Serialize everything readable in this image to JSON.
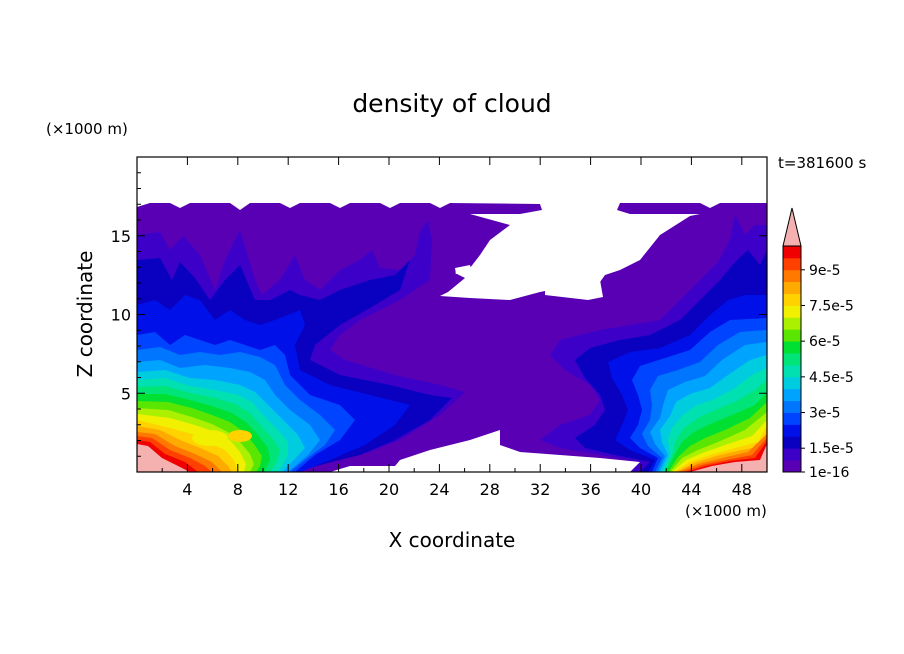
{
  "chart_data": {
    "type": "heatmap",
    "title": "density of cloud",
    "time_label": "t=381600 s",
    "xlabel": "X coordinate",
    "ylabel": "Z coordinate",
    "x_unit": "(×1000 m)",
    "y_unit": "(×1000 m)",
    "xlim": [
      0,
      50
    ],
    "ylim": [
      0,
      20
    ],
    "x_ticks": [
      4,
      8,
      12,
      16,
      20,
      24,
      28,
      32,
      36,
      40,
      44,
      48
    ],
    "y_ticks": [
      5,
      10,
      15
    ],
    "colorbar": {
      "levels": [
        1e-16,
        1e-05,
        1.5e-05,
        2e-05,
        2.5e-05,
        3e-05,
        3.5e-05,
        4e-05,
        4.5e-05,
        5e-05,
        5.5e-05,
        6e-05,
        6.5e-05,
        7e-05,
        7.5e-05,
        8e-05,
        8.5e-05,
        9e-05,
        9.5e-05,
        0.0001
      ],
      "labels": [
        {
          "value": 1e-16,
          "text": "1e-16"
        },
        {
          "value": 1.5e-05,
          "text": "1.5e-5"
        },
        {
          "value": 3e-05,
          "text": "3e-5"
        },
        {
          "value": 4.5e-05,
          "text": "4.5e-5"
        },
        {
          "value": 6e-05,
          "text": "6e-5"
        },
        {
          "value": 7.5e-05,
          "text": "7.5e-5"
        },
        {
          "value": 9e-05,
          "text": "9e-5"
        }
      ],
      "colors": [
        "#5a00b4",
        "#3c00c8",
        "#0a00c0",
        "#0010e8",
        "#0044ff",
        "#0076ff",
        "#00a4ff",
        "#00cce0",
        "#00e0b0",
        "#00e478",
        "#00e032",
        "#5ae600",
        "#aaf000",
        "#f0f000",
        "#ffd200",
        "#ffaa00",
        "#ff7800",
        "#ff4000",
        "#f00000"
      ],
      "overflow_color": "#f5b0b0"
    },
    "fields": {
      "envelope": {
        "value": 1e-16,
        "x_range": [
          0,
          50
        ],
        "z_top": 17
      },
      "left_plume": {
        "center_x": 6,
        "center_z": 2,
        "peak_value": 0.0001
      },
      "right_plume": {
        "center_x": 47,
        "center_z": 1.5,
        "peak_value": 0.0001
      }
    }
  }
}
